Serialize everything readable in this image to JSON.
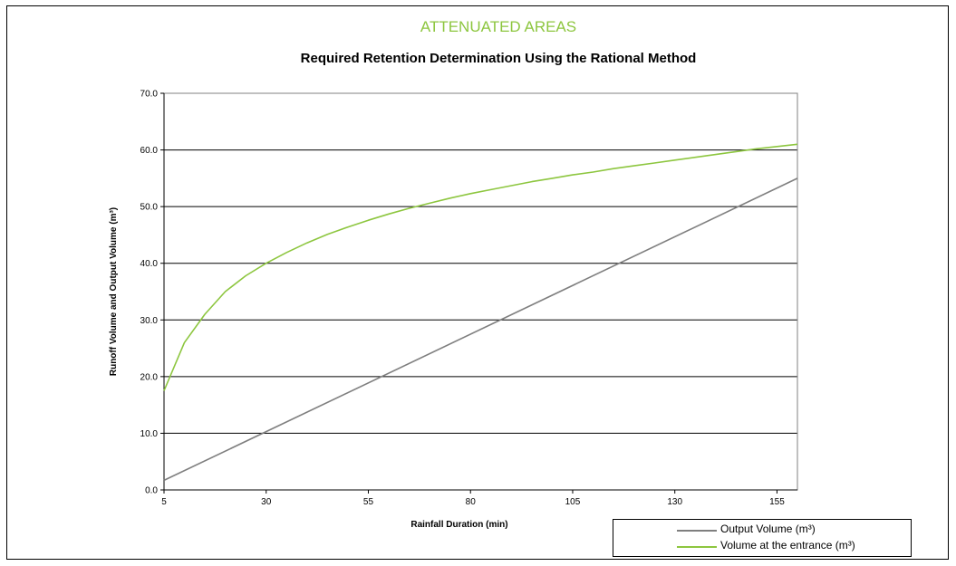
{
  "header": {
    "supertitle": "ATTENUATED AREAS",
    "title": "Required Retention Determination Using the Rational Method"
  },
  "colors": {
    "output_series": "#7f7f7f",
    "entrance_series": "#8dc63f",
    "supertitle": "#8dc63f"
  },
  "chart_data": {
    "type": "line",
    "title": "Required Retention Determination Using the Rational Method",
    "xlabel": "Rainfall Duration (min)",
    "ylabel": "Runoff Volume and Output Volume (m³)",
    "xlim": [
      5,
      160
    ],
    "ylim": [
      0,
      70
    ],
    "x_ticks": [
      "5",
      "30",
      "55",
      "80",
      "105",
      "130",
      "155"
    ],
    "y_ticks": [
      "0.0",
      "10.0",
      "20.0",
      "30.0",
      "40.0",
      "50.0",
      "60.0",
      "70.0"
    ],
    "grid": "horizontal",
    "legend_position": "bottom-right",
    "series": [
      {
        "name": "Output Volume (m³)",
        "color": "#7f7f7f",
        "x": [
          5,
          160
        ],
        "y": [
          1.7,
          55.0
        ]
      },
      {
        "name": "Volume at the entrance  (m³)",
        "color": "#8dc63f",
        "x": [
          5,
          10,
          15,
          20,
          25,
          30,
          35,
          40,
          45,
          50,
          55,
          60,
          65,
          70,
          75,
          80,
          85,
          90,
          95,
          100,
          105,
          110,
          115,
          120,
          125,
          130,
          135,
          140,
          145,
          150,
          155,
          160
        ],
        "y": [
          17.5,
          26.0,
          31.0,
          35.0,
          37.8,
          40.0,
          41.9,
          43.6,
          45.1,
          46.4,
          47.6,
          48.7,
          49.7,
          50.6,
          51.5,
          52.3,
          53.0,
          53.7,
          54.4,
          55.0,
          55.6,
          56.1,
          56.7,
          57.2,
          57.7,
          58.2,
          58.7,
          59.2,
          59.7,
          60.2,
          60.6,
          61.0
        ]
      }
    ]
  }
}
